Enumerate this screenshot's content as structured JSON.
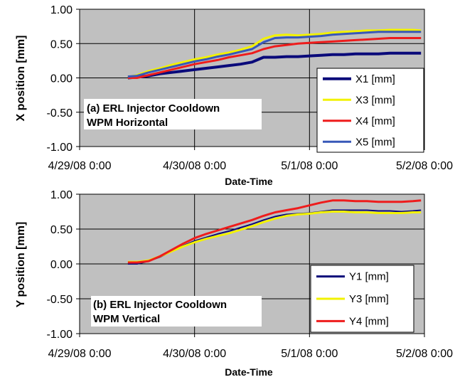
{
  "chart_data": [
    {
      "type": "line",
      "xlabel": "Date-Time",
      "ylabel": "X position [mm]",
      "annotation": [
        "(a) ERL Injector Cooldown",
        "WPM Horizontal"
      ],
      "x_tick_labels": [
        "4/29/08 0:00",
        "4/30/08 0:00",
        "5/1/08 0:00",
        "5/2/08 0:00"
      ],
      "y_tick_labels": [
        "-1.00",
        "-0.50",
        "0.00",
        "0.50",
        "1.00"
      ],
      "xlim_days": [
        0,
        3
      ],
      "ylim": [
        -1.0,
        1.0
      ],
      "grid": true,
      "legend": "right",
      "plot_background": "#c0c0c0",
      "x_days_since": "4/29/08 0:00",
      "series": [
        {
          "name": "X1 [mm]",
          "color": "#0a0a7a",
          "width": 4,
          "x": [
            0.42,
            0.5,
            0.6,
            0.7,
            0.8,
            0.9,
            1.0,
            1.1,
            1.2,
            1.3,
            1.4,
            1.5,
            1.6,
            1.7,
            1.8,
            1.9,
            2.0,
            2.1,
            2.2,
            2.3,
            2.4,
            2.5,
            2.6,
            2.7,
            2.8,
            2.9,
            2.97
          ],
          "y": [
            0.0,
            0.01,
            0.03,
            0.06,
            0.08,
            0.1,
            0.12,
            0.14,
            0.16,
            0.18,
            0.2,
            0.23,
            0.3,
            0.3,
            0.31,
            0.31,
            0.32,
            0.33,
            0.34,
            0.34,
            0.35,
            0.35,
            0.35,
            0.36,
            0.36,
            0.36,
            0.36
          ]
        },
        {
          "name": "X3 [mm]",
          "color": "#f2f200",
          "width": 3,
          "x": [
            0.42,
            0.5,
            0.6,
            0.7,
            0.8,
            0.9,
            1.0,
            1.1,
            1.2,
            1.3,
            1.4,
            1.5,
            1.6,
            1.7,
            1.8,
            1.9,
            2.0,
            2.1,
            2.2,
            2.3,
            2.4,
            2.5,
            2.6,
            2.7,
            2.8,
            2.9,
            2.97
          ],
          "y": [
            0.01,
            0.04,
            0.1,
            0.14,
            0.19,
            0.23,
            0.27,
            0.3,
            0.34,
            0.37,
            0.41,
            0.46,
            0.57,
            0.62,
            0.63,
            0.62,
            0.63,
            0.64,
            0.66,
            0.67,
            0.68,
            0.69,
            0.69,
            0.7,
            0.7,
            0.7,
            0.69
          ]
        },
        {
          "name": "X4 [mm]",
          "color": "#ee1c1c",
          "width": 3,
          "x": [
            0.42,
            0.5,
            0.6,
            0.7,
            0.8,
            0.9,
            1.0,
            1.1,
            1.2,
            1.3,
            1.4,
            1.5,
            1.6,
            1.7,
            1.8,
            1.9,
            2.0,
            2.1,
            2.2,
            2.3,
            2.4,
            2.5,
            2.6,
            2.7,
            2.8,
            2.9,
            2.97
          ],
          "y": [
            0.0,
            0.0,
            0.04,
            0.08,
            0.12,
            0.16,
            0.2,
            0.23,
            0.26,
            0.3,
            0.33,
            0.36,
            0.42,
            0.46,
            0.48,
            0.5,
            0.51,
            0.52,
            0.53,
            0.54,
            0.55,
            0.56,
            0.57,
            0.58,
            0.58,
            0.58,
            0.58
          ]
        },
        {
          "name": "X5 [mm]",
          "color": "#3858b8",
          "width": 3,
          "x": [
            0.42,
            0.5,
            0.6,
            0.7,
            0.8,
            0.9,
            1.0,
            1.1,
            1.2,
            1.3,
            1.4,
            1.5,
            1.6,
            1.7,
            1.8,
            1.9,
            2.0,
            2.1,
            2.2,
            2.3,
            2.4,
            2.5,
            2.6,
            2.7,
            2.8,
            2.9,
            2.97
          ],
          "y": [
            0.02,
            0.03,
            0.08,
            0.12,
            0.16,
            0.2,
            0.24,
            0.27,
            0.31,
            0.34,
            0.38,
            0.42,
            0.52,
            0.58,
            0.59,
            0.59,
            0.6,
            0.61,
            0.63,
            0.64,
            0.65,
            0.66,
            0.67,
            0.67,
            0.67,
            0.67,
            0.67
          ]
        }
      ]
    },
    {
      "type": "line",
      "xlabel": "Date-Time",
      "ylabel": "Y position [mm]",
      "annotation": [
        "(b) ERL Injector Cooldown",
        "WPM Vertical"
      ],
      "x_tick_labels": [
        "4/29/08 0:00",
        "4/30/08 0:00",
        "5/1/08 0:00",
        "5/2/08 0:00"
      ],
      "y_tick_labels": [
        "-1.00",
        "-0.50",
        "0.00",
        "0.50",
        "1.00"
      ],
      "xlim_days": [
        0,
        3
      ],
      "ylim": [
        -1.0,
        1.0
      ],
      "grid": true,
      "legend": "right",
      "plot_background": "#c0c0c0",
      "x_days_since": "4/29/08 0:00",
      "series": [
        {
          "name": "Y1 [mm]",
          "color": "#0a0a7a",
          "width": 2,
          "x": [
            0.42,
            0.5,
            0.6,
            0.7,
            0.8,
            0.9,
            1.0,
            1.1,
            1.2,
            1.3,
            1.4,
            1.5,
            1.6,
            1.7,
            1.8,
            1.9,
            2.0,
            2.1,
            2.2,
            2.3,
            2.4,
            2.5,
            2.6,
            2.7,
            2.8,
            2.9,
            2.97
          ],
          "y": [
            0.0,
            0.0,
            0.04,
            0.1,
            0.18,
            0.26,
            0.33,
            0.38,
            0.43,
            0.47,
            0.52,
            0.57,
            0.63,
            0.68,
            0.71,
            0.72,
            0.73,
            0.75,
            0.77,
            0.77,
            0.77,
            0.77,
            0.76,
            0.76,
            0.75,
            0.76,
            0.77
          ]
        },
        {
          "name": "Y3 [mm]",
          "color": "#f2f200",
          "width": 3,
          "x": [
            0.42,
            0.5,
            0.6,
            0.7,
            0.8,
            0.9,
            1.0,
            1.1,
            1.2,
            1.3,
            1.4,
            1.5,
            1.6,
            1.7,
            1.8,
            1.9,
            2.0,
            2.1,
            2.2,
            2.3,
            2.4,
            2.5,
            2.6,
            2.7,
            2.8,
            2.9,
            2.97
          ],
          "y": [
            0.03,
            0.03,
            0.05,
            0.11,
            0.18,
            0.25,
            0.31,
            0.36,
            0.4,
            0.44,
            0.49,
            0.54,
            0.6,
            0.65,
            0.69,
            0.71,
            0.72,
            0.74,
            0.75,
            0.75,
            0.74,
            0.74,
            0.73,
            0.73,
            0.73,
            0.74,
            0.74
          ]
        },
        {
          "name": "Y4 [mm]",
          "color": "#ee1c1c",
          "width": 3,
          "x": [
            0.42,
            0.5,
            0.6,
            0.7,
            0.8,
            0.9,
            1.0,
            1.1,
            1.2,
            1.3,
            1.4,
            1.5,
            1.6,
            1.7,
            1.8,
            1.9,
            2.0,
            2.1,
            2.2,
            2.3,
            2.4,
            2.5,
            2.6,
            2.7,
            2.8,
            2.9,
            2.97
          ],
          "y": [
            0.02,
            0.02,
            0.04,
            0.11,
            0.2,
            0.29,
            0.37,
            0.43,
            0.48,
            0.53,
            0.58,
            0.63,
            0.69,
            0.74,
            0.77,
            0.8,
            0.84,
            0.88,
            0.91,
            0.91,
            0.9,
            0.9,
            0.89,
            0.89,
            0.89,
            0.9,
            0.91
          ]
        }
      ]
    }
  ]
}
